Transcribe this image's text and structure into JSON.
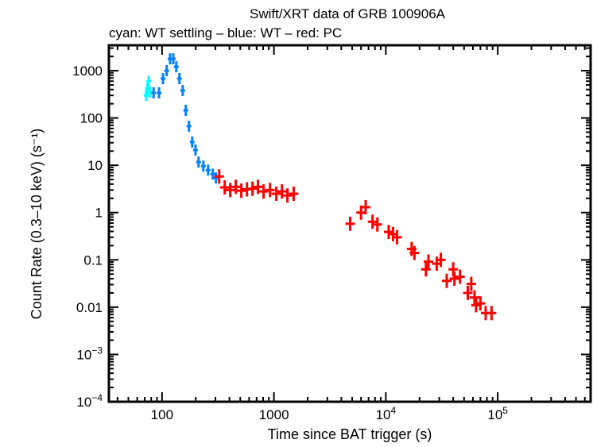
{
  "chart_data": {
    "type": "scatter",
    "title": "Swift/XRT data of GRB 100906A",
    "subtitle": "cyan: WT settling – blue: WT – red: PC",
    "xlabel": "Time since BAT trigger (s)",
    "ylabel": "Count Rate (0.3–10 keV) (s⁻¹)",
    "xscale": "log",
    "yscale": "log",
    "xlim": [
      33.5,
      676000
    ],
    "ylim": [
      0.0001,
      3450
    ],
    "grid": false,
    "x_ticks": [
      {
        "value": 100,
        "label": "100"
      },
      {
        "value": 1000,
        "label": "1000"
      },
      {
        "value": 10000,
        "label": "10",
        "sup": "4"
      },
      {
        "value": 100000,
        "label": "10",
        "sup": "5"
      }
    ],
    "y_ticks": [
      {
        "value": 1000,
        "label": "1000"
      },
      {
        "value": 100,
        "label": "100"
      },
      {
        "value": 10,
        "label": "10"
      },
      {
        "value": 1,
        "label": "1"
      },
      {
        "value": 0.1,
        "label": "0.1"
      },
      {
        "value": 0.01,
        "label": "0.01"
      },
      {
        "value": 0.001,
        "label": "10",
        "sup": "−3"
      },
      {
        "value": 0.0001,
        "label": "10",
        "sup": "−4"
      }
    ],
    "series": [
      {
        "name": "WT settling",
        "color": "#00ffff",
        "points": [
          [
            72,
            300
          ],
          [
            74,
            420
          ],
          [
            76,
            600
          ],
          [
            78,
            350
          ]
        ]
      },
      {
        "name": "WT",
        "color": "#0080ff",
        "points": [
          [
            84,
            340
          ],
          [
            94,
            340
          ],
          [
            102,
            680
          ],
          [
            110,
            1000
          ],
          [
            118,
            1780
          ],
          [
            126,
            1780
          ],
          [
            134,
            1210
          ],
          [
            143,
            680
          ],
          [
            153,
            380
          ],
          [
            163,
            145
          ],
          [
            174,
            67
          ],
          [
            186,
            31
          ],
          [
            199,
            21
          ],
          [
            212,
            11.7
          ],
          [
            234,
            9.6
          ],
          [
            258,
            7.9
          ],
          [
            284,
            6.5
          ],
          [
            303,
            5.4
          ]
        ]
      },
      {
        "name": "PC",
        "color": "#ff0000",
        "points": [
          [
            324,
            5.8
          ],
          [
            363,
            3.4
          ],
          [
            407,
            3.0
          ],
          [
            456,
            3.5
          ],
          [
            511,
            2.9
          ],
          [
            574,
            3.1
          ],
          [
            643,
            3.2
          ],
          [
            720,
            3.5
          ],
          [
            808,
            2.8
          ],
          [
            922,
            3.0
          ],
          [
            1050,
            2.5
          ],
          [
            1180,
            2.8
          ],
          [
            1320,
            2.3
          ],
          [
            1500,
            2.5
          ],
          [
            4800,
            0.58
          ],
          [
            6000,
            1.0
          ],
          [
            6600,
            1.3
          ],
          [
            7600,
            0.64
          ],
          [
            8400,
            0.56
          ],
          [
            10600,
            0.39
          ],
          [
            11600,
            0.35
          ],
          [
            12600,
            0.3
          ],
          [
            17000,
            0.17
          ],
          [
            18000,
            0.14
          ],
          [
            22800,
            0.063
          ],
          [
            24000,
            0.092
          ],
          [
            28500,
            0.083
          ],
          [
            31000,
            0.1
          ],
          [
            35000,
            0.036
          ],
          [
            40000,
            0.063
          ],
          [
            41000,
            0.04
          ],
          [
            46000,
            0.044
          ],
          [
            54000,
            0.02
          ],
          [
            58000,
            0.031
          ],
          [
            62000,
            0.016
          ],
          [
            64000,
            0.011
          ],
          [
            70000,
            0.012
          ],
          [
            78000,
            0.0075
          ],
          [
            88000,
            0.0075
          ]
        ]
      }
    ]
  }
}
